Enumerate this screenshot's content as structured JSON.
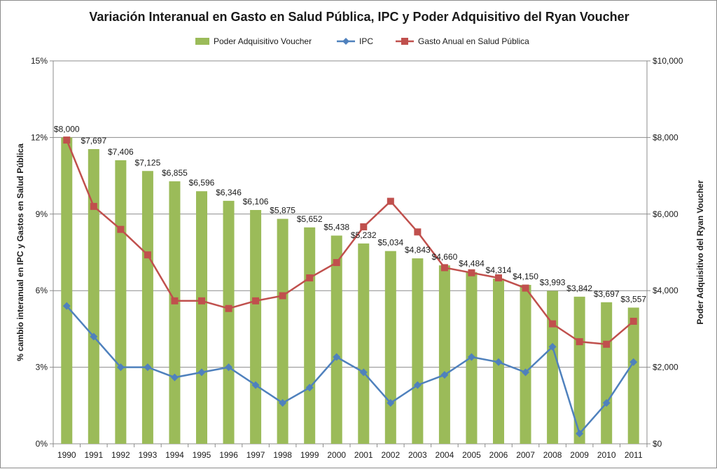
{
  "chart_data": {
    "type": "bar",
    "title": "Variación  Interanual en Gasto en Salud Pública, IPC y Poder Adquisitivo del Ryan Voucher",
    "categories": [
      "1990",
      "1991",
      "1992",
      "1993",
      "1994",
      "1995",
      "1996",
      "1997",
      "1998",
      "1999",
      "2000",
      "2001",
      "2002",
      "2003",
      "2004",
      "2005",
      "2006",
      "2007",
      "2008",
      "2009",
      "2010",
      "2011"
    ],
    "y_left": {
      "label": "% cambio interanual en IPC y Gastos en Salud Pública",
      "min": 0,
      "max": 15,
      "ticks": [
        0,
        3,
        6,
        9,
        12,
        15
      ],
      "tick_labels": [
        "0%",
        "3%",
        "6%",
        "9%",
        "12%",
        "15%"
      ]
    },
    "y_right": {
      "label": "Poder Adquisitivo del Ryan Voucher",
      "min": 0,
      "max": 10000,
      "ticks": [
        0,
        2000,
        4000,
        6000,
        8000,
        10000
      ],
      "tick_labels": [
        "$0",
        "$2,000",
        "$4,000",
        "$6,000",
        "$8,000",
        "$10,000"
      ]
    },
    "legend": {
      "position": "top"
    },
    "series": [
      {
        "name": "Poder Adquisitivo Voucher",
        "type": "bar",
        "axis": "right",
        "color": "#9bbb59",
        "values": [
          8000,
          7697,
          7406,
          7125,
          6855,
          6596,
          6346,
          6106,
          5875,
          5652,
          5438,
          5232,
          5034,
          4843,
          4660,
          4484,
          4314,
          4150,
          3993,
          3842,
          3697,
          3557
        ],
        "labels": [
          "$8,000",
          "$7,697",
          "$7,406",
          "$7,125",
          "$6,855",
          "$6,596",
          "$6,346",
          "$6,106",
          "$5,875",
          "$5,652",
          "$5,438",
          "$5,232",
          "$5,034",
          "$4,843",
          "$4,660",
          "$4,484",
          "$4,314",
          "$4,150",
          "$3,993",
          "$3,842",
          "$3,697",
          "$3,557"
        ]
      },
      {
        "name": "IPC",
        "type": "line",
        "axis": "left",
        "marker": "diamond",
        "color": "#4f81bd",
        "values": [
          5.4,
          4.2,
          3.0,
          3.0,
          2.6,
          2.8,
          3.0,
          2.3,
          1.6,
          2.2,
          3.4,
          2.8,
          1.6,
          2.3,
          2.7,
          3.4,
          3.2,
          2.8,
          3.8,
          0.4,
          1.6,
          3.2
        ]
      },
      {
        "name": "Gasto Anual en Salud Pública",
        "type": "line",
        "axis": "left",
        "marker": "square",
        "color": "#c0504d",
        "values": [
          11.9,
          9.3,
          8.4,
          7.4,
          5.6,
          5.6,
          5.3,
          5.6,
          5.8,
          6.5,
          7.1,
          8.5,
          9.5,
          8.3,
          6.9,
          6.7,
          6.5,
          6.1,
          4.7,
          4.0,
          3.9,
          4.8
        ]
      }
    ]
  }
}
